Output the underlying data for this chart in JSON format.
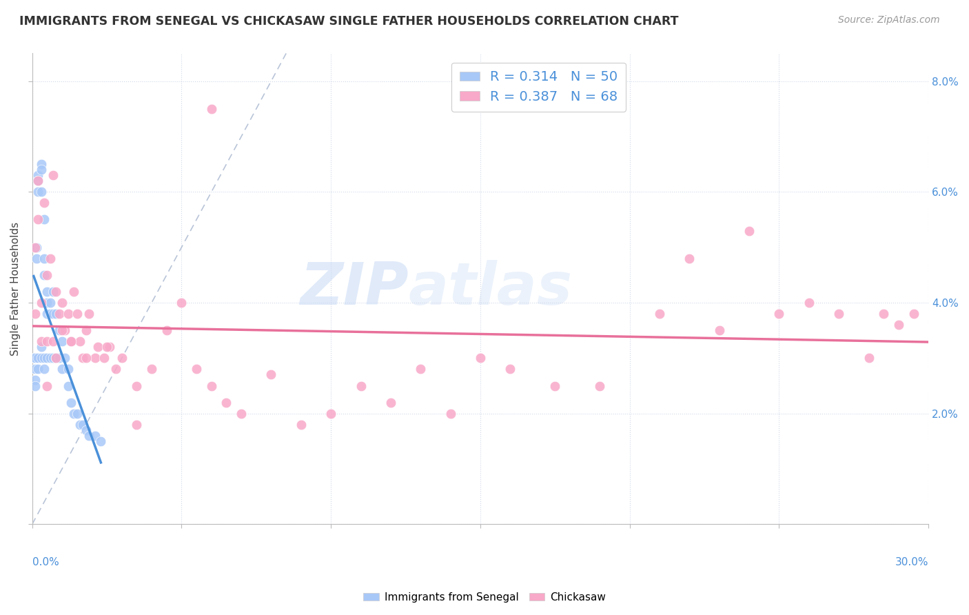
{
  "title": "IMMIGRANTS FROM SENEGAL VS CHICKASAW SINGLE FATHER HOUSEHOLDS CORRELATION CHART",
  "source": "Source: ZipAtlas.com",
  "ylabel": "Single Father Households",
  "legend1_R": "0.314",
  "legend1_N": "50",
  "legend2_R": "0.387",
  "legend2_N": "68",
  "senegal_color": "#a8c8f8",
  "chickasaw_color": "#f8a8c8",
  "senegal_line_color": "#4a90d9",
  "chickasaw_line_color": "#e8709a",
  "diagonal_color": "#b8c4d8",
  "watermark_zip": "ZIP",
  "watermark_atlas": "atlas",
  "xmin": 0.0,
  "xmax": 0.3,
  "ymin": 0.0,
  "ymax": 0.085,
  "senegal_x": [
    0.0005,
    0.001,
    0.001,
    0.001,
    0.001,
    0.0015,
    0.0015,
    0.002,
    0.002,
    0.002,
    0.002,
    0.002,
    0.003,
    0.003,
    0.003,
    0.003,
    0.003,
    0.004,
    0.004,
    0.004,
    0.004,
    0.004,
    0.005,
    0.005,
    0.005,
    0.005,
    0.006,
    0.006,
    0.006,
    0.007,
    0.007,
    0.007,
    0.008,
    0.008,
    0.009,
    0.009,
    0.01,
    0.01,
    0.011,
    0.012,
    0.012,
    0.013,
    0.014,
    0.015,
    0.016,
    0.017,
    0.018,
    0.019,
    0.021,
    0.023
  ],
  "senegal_y": [
    0.03,
    0.03,
    0.028,
    0.026,
    0.025,
    0.05,
    0.048,
    0.063,
    0.062,
    0.06,
    0.03,
    0.028,
    0.065,
    0.064,
    0.06,
    0.032,
    0.03,
    0.055,
    0.048,
    0.045,
    0.03,
    0.028,
    0.042,
    0.04,
    0.038,
    0.03,
    0.04,
    0.038,
    0.03,
    0.042,
    0.038,
    0.03,
    0.038,
    0.03,
    0.035,
    0.03,
    0.033,
    0.028,
    0.03,
    0.028,
    0.025,
    0.022,
    0.02,
    0.02,
    0.018,
    0.018,
    0.017,
    0.016,
    0.016,
    0.015
  ],
  "chickasaw_x": [
    0.001,
    0.001,
    0.002,
    0.002,
    0.003,
    0.003,
    0.004,
    0.005,
    0.005,
    0.006,
    0.007,
    0.008,
    0.008,
    0.009,
    0.01,
    0.011,
    0.012,
    0.013,
    0.014,
    0.015,
    0.016,
    0.017,
    0.018,
    0.019,
    0.021,
    0.022,
    0.024,
    0.026,
    0.028,
    0.03,
    0.035,
    0.04,
    0.045,
    0.05,
    0.055,
    0.06,
    0.065,
    0.07,
    0.08,
    0.09,
    0.1,
    0.11,
    0.12,
    0.13,
    0.14,
    0.15,
    0.16,
    0.175,
    0.19,
    0.21,
    0.22,
    0.23,
    0.24,
    0.25,
    0.26,
    0.27,
    0.28,
    0.285,
    0.29,
    0.295,
    0.005,
    0.007,
    0.01,
    0.013,
    0.018,
    0.025,
    0.035,
    0.06
  ],
  "chickasaw_y": [
    0.05,
    0.038,
    0.062,
    0.055,
    0.04,
    0.033,
    0.058,
    0.045,
    0.033,
    0.048,
    0.063,
    0.042,
    0.03,
    0.038,
    0.04,
    0.035,
    0.038,
    0.033,
    0.042,
    0.038,
    0.033,
    0.03,
    0.035,
    0.038,
    0.03,
    0.032,
    0.03,
    0.032,
    0.028,
    0.03,
    0.025,
    0.028,
    0.035,
    0.04,
    0.028,
    0.025,
    0.022,
    0.02,
    0.027,
    0.018,
    0.02,
    0.025,
    0.022,
    0.028,
    0.02,
    0.03,
    0.028,
    0.025,
    0.025,
    0.038,
    0.048,
    0.035,
    0.053,
    0.038,
    0.04,
    0.038,
    0.03,
    0.038,
    0.036,
    0.038,
    0.025,
    0.033,
    0.035,
    0.033,
    0.03,
    0.032,
    0.018,
    0.075
  ],
  "xtick_positions": [
    0.0,
    0.05,
    0.1,
    0.15,
    0.2,
    0.25,
    0.3
  ],
  "ytick_positions": [
    0.0,
    0.02,
    0.04,
    0.06,
    0.08
  ],
  "right_ytick_labels": [
    "2.0%",
    "4.0%",
    "6.0%",
    "8.0%"
  ],
  "right_ytick_values": [
    0.02,
    0.04,
    0.06,
    0.08
  ]
}
